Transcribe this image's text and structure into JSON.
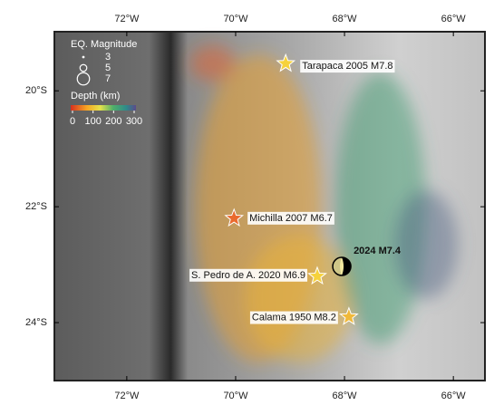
{
  "map": {
    "xlim": [
      -73.33,
      -65.42
    ],
    "ylim": [
      -25.0,
      -18.98
    ],
    "xticks": [
      {
        "value": -72,
        "label": "72°W"
      },
      {
        "value": -70,
        "label": "70°W"
      },
      {
        "value": -68,
        "label": "68°W"
      },
      {
        "value": -66,
        "label": "66°W"
      }
    ],
    "yticks": [
      {
        "value": -20,
        "label": "20°S"
      },
      {
        "value": -22,
        "label": "22°S"
      },
      {
        "value": -24,
        "label": "24°S"
      }
    ],
    "legend": {
      "magnitude_title": "EQ. Magnitude",
      "magnitudes": [
        3,
        5,
        7
      ],
      "depth_title": "Depth (km)",
      "depths": [
        0,
        100,
        200,
        300
      ]
    },
    "events": [
      {
        "label": "Tarapaca 2005 M7.8",
        "lon": -69.08,
        "lat": -19.53,
        "color": "#f6d23c"
      },
      {
        "label": "Michilla 2007 M6.7",
        "lon": -70.03,
        "lat": -22.2,
        "color": "#ea6a2e"
      },
      {
        "label": "2024 M7.4",
        "lon": -68.05,
        "lat": -23.03,
        "color": "#f3e9a0"
      },
      {
        "label": "S. Pedro de A. 2020 M6.9",
        "lon": -68.5,
        "lat": -23.2,
        "color": "#f6d23c"
      },
      {
        "label": "Calama 1950 M8.2",
        "lon": -67.92,
        "lat": -23.9,
        "color": "#f0b93a"
      }
    ]
  }
}
